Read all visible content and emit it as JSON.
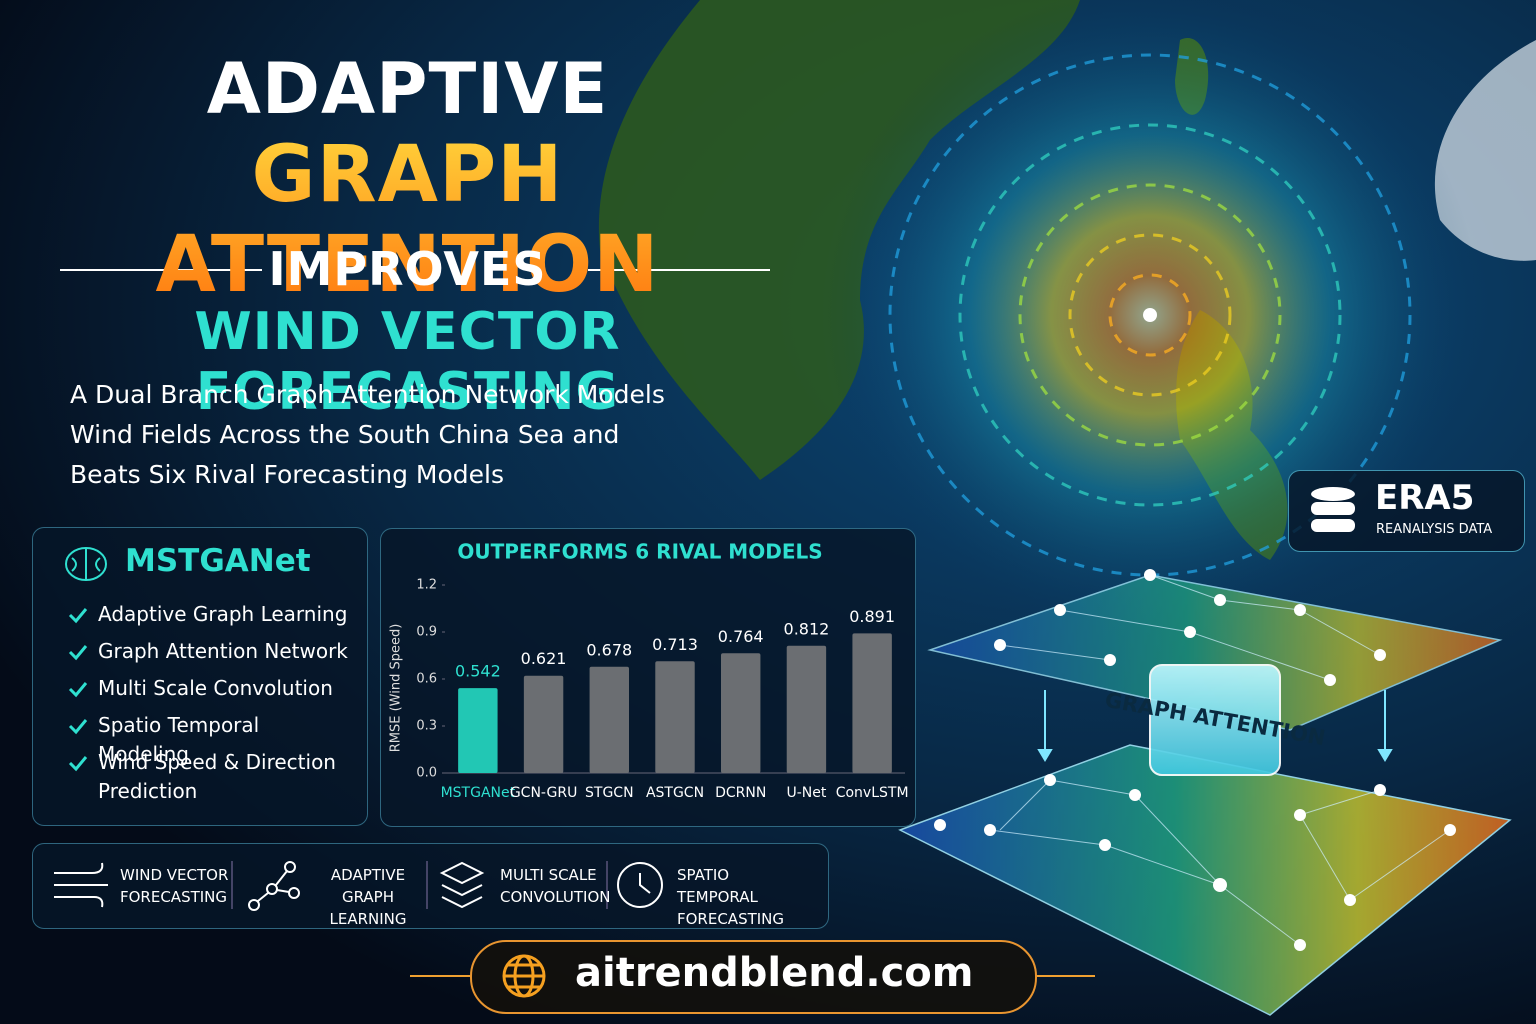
{
  "header": {
    "line1": "ADAPTIVE",
    "line2": "GRAPH ATTENTION",
    "line3": "IMPROVES",
    "line4": "WIND VECTOR FORECASTING",
    "subtitle": [
      "A Dual Branch Graph Attention Network Models",
      "Wind Fields Across the South China Sea and",
      "Beats Six Rival Forecasting Models"
    ]
  },
  "model_card": {
    "name": "MSTGANet",
    "features": [
      "Adaptive Graph Learning",
      "Graph Attention Network",
      "Multi Scale Convolution",
      "Spatio Temporal Modeling",
      "Wind Speed & Direction Prediction"
    ]
  },
  "chart_data": {
    "type": "bar",
    "title": "OUTPERFORMS 6 RIVAL MODELS",
    "y_label": "RMSE (Wind Speed)",
    "categories": [
      "MSTGANet",
      "GCN-GRU",
      "STGCN",
      "ASTGCN",
      "DCRNN",
      "U-Net",
      "ConvLSTM"
    ],
    "values": [
      0.542,
      0.621,
      0.678,
      0.713,
      0.764,
      0.812,
      0.891
    ],
    "colors": [
      "#22c7b4",
      "#6b6e72",
      "#6b6e72",
      "#6b6e72",
      "#6b6e72",
      "#6b6e72",
      "#6b6e72"
    ],
    "ylim": [
      0,
      1.2
    ],
    "yticks": [
      {
        "value": 0,
        "label": "0.0"
      },
      0.3,
      0.6,
      0.9,
      1.2
    ]
  },
  "era5": {
    "title": "ERA5",
    "subtitle": "REANALYSIS DATA"
  },
  "feature_strip": [
    "WIND VECTOR FORECASTING",
    "ADAPTIVE GRAPH LEARNING",
    "MULTI SCALE CONVOLUTION",
    "SPATIO TEMPORAL FORECASTING"
  ],
  "graph_label": "GRAPH ATTENTION",
  "footer": {
    "url": "aitrendblend.com"
  }
}
